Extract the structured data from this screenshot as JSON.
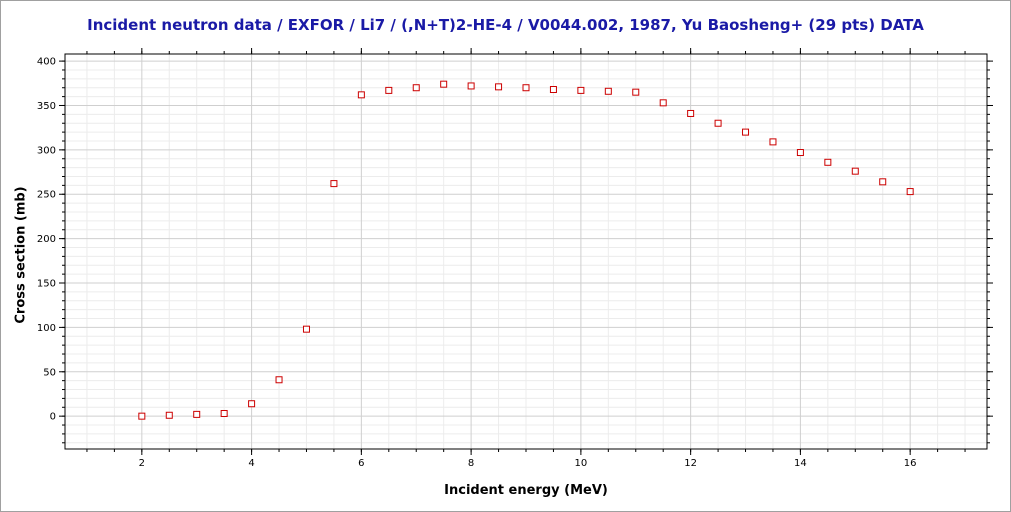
{
  "chart_data": {
    "type": "scatter",
    "title": "Incident neutron data / EXFOR / Li7 / (,N+T)2-HE-4 / V0044.002, 1987, Yu Baosheng+ (29 pts) DATA",
    "xlabel": "Incident energy (MeV)",
    "ylabel": "Cross section (mb)",
    "xlim": [
      0.6,
      17.4
    ],
    "ylim": [
      -37,
      408
    ],
    "xticks": [
      "2",
      "4",
      "6",
      "8",
      "10",
      "12",
      "14",
      "16"
    ],
    "yticks": [
      "0",
      "50",
      "100",
      "150",
      "200",
      "250",
      "300",
      "350",
      "400"
    ],
    "grid": true,
    "marker": "open-square",
    "colors": {
      "marker": "#cc0000",
      "title": "#1a1aa6",
      "grid_major": "#cfcfcf",
      "grid_minor": "#ececec"
    },
    "series": [
      {
        "x": [
          2.0,
          2.5,
          3.0,
          3.5,
          4.0,
          4.5,
          5.0,
          5.5,
          6.0,
          6.5,
          7.0,
          7.5,
          8.0,
          8.5,
          9.0,
          9.5,
          10.0,
          10.5,
          11.0,
          11.5,
          12.0,
          12.5,
          13.0,
          13.5,
          14.0,
          14.5,
          15.0,
          15.5,
          16.0
        ],
        "y": [
          0,
          1,
          2,
          3,
          14,
          41,
          98,
          262,
          362,
          367,
          370,
          374,
          372,
          371,
          370,
          368,
          367,
          366,
          365,
          353,
          341,
          330,
          320,
          309,
          297,
          286,
          276,
          264,
          253
        ]
      }
    ]
  }
}
